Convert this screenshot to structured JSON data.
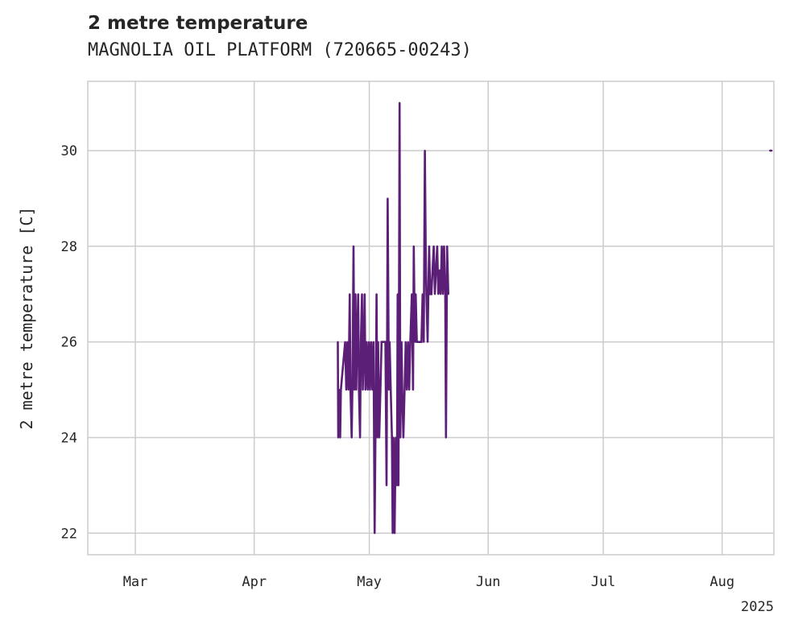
{
  "chart_data": {
    "type": "line",
    "title": "2 metre temperature",
    "subtitle": "MAGNOLIA OIL PLATFORM (720665-00243)",
    "xlabel": "",
    "ylabel": "2 metre temperature [C]",
    "x_year_label": "2025",
    "x_ticks": [
      {
        "label": "Mar",
        "day": 31
      },
      {
        "label": "Apr",
        "day": 62
      },
      {
        "label": "May",
        "day": 92
      },
      {
        "label": "Jun",
        "day": 123
      },
      {
        "label": "Jul",
        "day": 153
      },
      {
        "label": "Aug",
        "day": 184
      }
    ],
    "y_ticks": [
      22,
      24,
      26,
      28,
      30
    ],
    "xlim": [
      18.6,
      197.5
    ],
    "ylim": [
      21.55,
      31.45
    ],
    "line_color": "#5c1f78",
    "grid": true,
    "series": [
      {
        "name": "2 metre temperature",
        "points": [
          [
            83.8,
            26
          ],
          [
            83.9,
            24
          ],
          [
            84.2,
            25
          ],
          [
            84.4,
            24
          ],
          [
            84.6,
            25
          ],
          [
            85.7,
            26
          ],
          [
            86.0,
            25
          ],
          [
            86.3,
            26
          ],
          [
            86.6,
            25
          ],
          [
            86.9,
            27
          ],
          [
            87.1,
            25
          ],
          [
            87.4,
            24
          ],
          [
            87.6,
            25
          ],
          [
            87.9,
            28
          ],
          [
            88.1,
            25
          ],
          [
            88.4,
            27
          ],
          [
            88.6,
            25
          ],
          [
            88.8,
            26
          ],
          [
            89.1,
            27
          ],
          [
            89.3,
            25
          ],
          [
            89.6,
            24
          ],
          [
            89.8,
            26
          ],
          [
            90.1,
            27
          ],
          [
            90.3,
            25
          ],
          [
            90.6,
            26
          ],
          [
            90.8,
            27
          ],
          [
            91.0,
            25
          ],
          [
            91.3,
            26
          ],
          [
            91.6,
            25
          ],
          [
            91.9,
            26
          ],
          [
            92.2,
            25
          ],
          [
            92.5,
            26
          ],
          [
            92.8,
            25
          ],
          [
            93.1,
            26
          ],
          [
            93.4,
            22
          ],
          [
            93.7,
            25
          ],
          [
            93.9,
            27
          ],
          [
            94.1,
            24
          ],
          [
            94.3,
            26
          ],
          [
            94.6,
            24
          ],
          [
            94.9,
            25
          ],
          [
            95.2,
            26
          ],
          [
            95.8,
            26
          ],
          [
            96.2,
            26
          ],
          [
            96.5,
            23
          ],
          [
            96.8,
            29
          ],
          [
            97.1,
            25
          ],
          [
            97.3,
            26
          ],
          [
            97.6,
            25
          ],
          [
            97.9,
            24
          ],
          [
            98.1,
            22
          ],
          [
            98.3,
            24
          ],
          [
            98.6,
            22
          ],
          [
            98.9,
            24
          ],
          [
            99.2,
            23
          ],
          [
            99.4,
            27
          ],
          [
            99.6,
            23
          ],
          [
            99.9,
            31
          ],
          [
            100.1,
            24
          ],
          [
            100.4,
            26
          ],
          [
            100.6,
            25
          ],
          [
            100.9,
            24
          ],
          [
            101.2,
            25
          ],
          [
            101.5,
            26
          ],
          [
            101.8,
            25
          ],
          [
            102.1,
            26
          ],
          [
            102.4,
            25
          ],
          [
            102.7,
            26
          ],
          [
            103.1,
            27
          ],
          [
            103.4,
            25
          ],
          [
            103.6,
            28
          ],
          [
            103.9,
            26
          ],
          [
            104.1,
            27
          ],
          [
            104.4,
            26
          ],
          [
            104.7,
            26
          ],
          [
            105.0,
            26
          ],
          [
            105.3,
            26
          ],
          [
            105.6,
            26
          ],
          [
            105.9,
            27
          ],
          [
            106.2,
            26
          ],
          [
            106.5,
            30
          ],
          [
            106.7,
            28
          ],
          [
            106.9,
            27
          ],
          [
            107.2,
            26
          ],
          [
            107.4,
            27
          ],
          [
            107.6,
            28
          ],
          [
            107.9,
            27
          ],
          [
            108.2,
            27
          ],
          [
            108.5,
            27.5
          ],
          [
            108.8,
            28
          ],
          [
            109.1,
            27
          ],
          [
            109.4,
            27.5
          ],
          [
            109.7,
            28
          ],
          [
            110.0,
            27
          ],
          [
            110.3,
            27.5
          ],
          [
            110.6,
            27
          ],
          [
            110.9,
            28
          ],
          [
            111.2,
            27
          ],
          [
            111.5,
            28
          ],
          [
            111.8,
            27
          ],
          [
            112.0,
            24
          ],
          [
            112.3,
            28
          ],
          [
            112.6,
            27
          ],
          [
            196.5,
            30
          ],
          [
            196.9,
            30
          ]
        ]
      }
    ]
  }
}
